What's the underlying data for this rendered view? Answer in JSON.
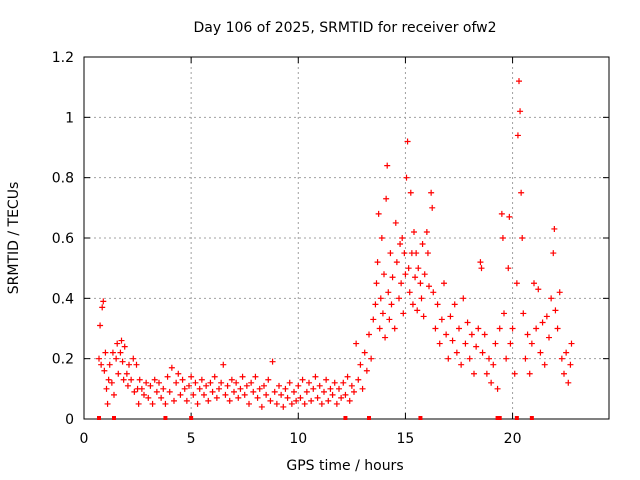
{
  "chart_data": {
    "type": "scatter",
    "title": "Day 106 of 2025, SRMTID for receiver ofw2",
    "xlabel": "GPS time / hours",
    "ylabel": "SRMTID / TECUs",
    "xlim": [
      0,
      24.5
    ],
    "ylim": [
      0,
      1.2
    ],
    "xticks": [
      0,
      5,
      10,
      15,
      20
    ],
    "xtick_labels": [
      "0",
      "5",
      "10",
      "15",
      "20"
    ],
    "yticks": [
      0,
      0.2,
      0.4,
      0.6,
      0.8,
      1.0,
      1.2
    ],
    "ytick_labels": [
      "0",
      "0.2",
      "0.4",
      "0.6",
      "0.8",
      "1",
      "1.2"
    ],
    "grid": true,
    "marker": "plus",
    "color": "#ff0000",
    "series": [
      {
        "name": "SRMTID",
        "points": [
          [
            0.7,
            0.2
          ],
          [
            0.75,
            0.31
          ],
          [
            0.8,
            0.18
          ],
          [
            0.85,
            0.37
          ],
          [
            0.9,
            0.39
          ],
          [
            0.95,
            0.16
          ],
          [
            1.0,
            0.22
          ],
          [
            1.05,
            0.1
          ],
          [
            1.1,
            0.05
          ],
          [
            1.15,
            0.13
          ],
          [
            1.2,
            0.18
          ],
          [
            1.3,
            0.12
          ],
          [
            1.35,
            0.22
          ],
          [
            1.4,
            0.08
          ],
          [
            1.5,
            0.2
          ],
          [
            1.55,
            0.25
          ],
          [
            1.6,
            0.15
          ],
          [
            1.7,
            0.22
          ],
          [
            1.75,
            0.26
          ],
          [
            1.8,
            0.19
          ],
          [
            1.85,
            0.13
          ],
          [
            1.9,
            0.24
          ],
          [
            2.0,
            0.15
          ],
          [
            2.05,
            0.11
          ],
          [
            2.1,
            0.18
          ],
          [
            2.2,
            0.13
          ],
          [
            2.3,
            0.2
          ],
          [
            2.35,
            0.09
          ],
          [
            2.45,
            0.18
          ],
          [
            2.5,
            0.1
          ],
          [
            2.55,
            0.05
          ],
          [
            2.6,
            0.13
          ],
          [
            2.7,
            0.1
          ],
          [
            2.8,
            0.08
          ],
          [
            2.9,
            0.12
          ],
          [
            3.0,
            0.07
          ],
          [
            3.1,
            0.11
          ],
          [
            3.2,
            0.05
          ],
          [
            3.3,
            0.13
          ],
          [
            3.4,
            0.09
          ],
          [
            3.5,
            0.12
          ],
          [
            3.6,
            0.07
          ],
          [
            3.7,
            0.1
          ],
          [
            3.8,
            0.05
          ],
          [
            3.9,
            0.14
          ],
          [
            4.0,
            0.09
          ],
          [
            4.1,
            0.17
          ],
          [
            4.2,
            0.06
          ],
          [
            4.3,
            0.12
          ],
          [
            4.4,
            0.15
          ],
          [
            4.5,
            0.08
          ],
          [
            4.6,
            0.13
          ],
          [
            4.7,
            0.1
          ],
          [
            4.8,
            0.06
          ],
          [
            4.9,
            0.11
          ],
          [
            5.0,
            0.14
          ],
          [
            5.1,
            0.08
          ],
          [
            5.2,
            0.12
          ],
          [
            5.3,
            0.05
          ],
          [
            5.4,
            0.1
          ],
          [
            5.5,
            0.13
          ],
          [
            5.6,
            0.08
          ],
          [
            5.7,
            0.11
          ],
          [
            5.8,
            0.06
          ],
          [
            5.9,
            0.12
          ],
          [
            6.0,
            0.09
          ],
          [
            6.1,
            0.14
          ],
          [
            6.2,
            0.07
          ],
          [
            6.3,
            0.1
          ],
          [
            6.4,
            0.12
          ],
          [
            6.5,
            0.18
          ],
          [
            6.6,
            0.08
          ],
          [
            6.7,
            0.11
          ],
          [
            6.8,
            0.06
          ],
          [
            6.9,
            0.13
          ],
          [
            7.0,
            0.09
          ],
          [
            7.1,
            0.12
          ],
          [
            7.2,
            0.07
          ],
          [
            7.3,
            0.1
          ],
          [
            7.4,
            0.14
          ],
          [
            7.5,
            0.08
          ],
          [
            7.6,
            0.11
          ],
          [
            7.7,
            0.05
          ],
          [
            7.8,
            0.12
          ],
          [
            7.9,
            0.09
          ],
          [
            8.0,
            0.14
          ],
          [
            8.1,
            0.07
          ],
          [
            8.2,
            0.1
          ],
          [
            8.3,
            0.04
          ],
          [
            8.4,
            0.11
          ],
          [
            8.5,
            0.08
          ],
          [
            8.6,
            0.13
          ],
          [
            8.7,
            0.06
          ],
          [
            8.8,
            0.19
          ],
          [
            8.9,
            0.09
          ],
          [
            9.0,
            0.05
          ],
          [
            9.1,
            0.11
          ],
          [
            9.2,
            0.08
          ],
          [
            9.3,
            0.04
          ],
          [
            9.4,
            0.1
          ],
          [
            9.5,
            0.07
          ],
          [
            9.6,
            0.12
          ],
          [
            9.7,
            0.05
          ],
          [
            9.8,
            0.09
          ],
          [
            9.9,
            0.06
          ],
          [
            10.0,
            0.11
          ],
          [
            10.1,
            0.07
          ],
          [
            10.2,
            0.13
          ],
          [
            10.3,
            0.05
          ],
          [
            10.4,
            0.09
          ],
          [
            10.5,
            0.12
          ],
          [
            10.6,
            0.06
          ],
          [
            10.7,
            0.1
          ],
          [
            10.8,
            0.14
          ],
          [
            10.9,
            0.07
          ],
          [
            11.0,
            0.11
          ],
          [
            11.1,
            0.05
          ],
          [
            11.2,
            0.09
          ],
          [
            11.3,
            0.13
          ],
          [
            11.4,
            0.06
          ],
          [
            11.5,
            0.1
          ],
          [
            11.6,
            0.08
          ],
          [
            11.7,
            0.12
          ],
          [
            11.8,
            0.05
          ],
          [
            11.9,
            0.1
          ],
          [
            12.0,
            0.07
          ],
          [
            12.1,
            0.12
          ],
          [
            12.2,
            0.08
          ],
          [
            12.3,
            0.14
          ],
          [
            12.4,
            0.06
          ],
          [
            12.5,
            0.11
          ],
          [
            12.6,
            0.09
          ],
          [
            12.7,
            0.25
          ],
          [
            12.8,
            0.13
          ],
          [
            12.9,
            0.18
          ],
          [
            13.0,
            0.1
          ],
          [
            13.1,
            0.22
          ],
          [
            13.2,
            0.16
          ],
          [
            13.3,
            0.28
          ],
          [
            13.4,
            0.2
          ],
          [
            13.5,
            0.33
          ],
          [
            13.6,
            0.38
          ],
          [
            13.65,
            0.45
          ],
          [
            13.7,
            0.52
          ],
          [
            13.75,
            0.68
          ],
          [
            13.8,
            0.3
          ],
          [
            13.85,
            0.4
          ],
          [
            13.9,
            0.6
          ],
          [
            13.95,
            0.35
          ],
          [
            14.0,
            0.48
          ],
          [
            14.05,
            0.27
          ],
          [
            14.1,
            0.73
          ],
          [
            14.15,
            0.84
          ],
          [
            14.2,
            0.42
          ],
          [
            14.25,
            0.33
          ],
          [
            14.3,
            0.55
          ],
          [
            14.35,
            0.38
          ],
          [
            14.4,
            0.47
          ],
          [
            14.5,
            0.3
          ],
          [
            14.55,
            0.65
          ],
          [
            14.6,
            0.52
          ],
          [
            14.7,
            0.4
          ],
          [
            14.75,
            0.58
          ],
          [
            14.8,
            0.45
          ],
          [
            14.85,
            0.6
          ],
          [
            14.9,
            0.35
          ],
          [
            14.95,
            0.55
          ],
          [
            15.0,
            0.48
          ],
          [
            15.05,
            0.8
          ],
          [
            15.1,
            0.92
          ],
          [
            15.15,
            0.5
          ],
          [
            15.2,
            0.42
          ],
          [
            15.25,
            0.75
          ],
          [
            15.3,
            0.55
          ],
          [
            15.35,
            0.38
          ],
          [
            15.4,
            0.62
          ],
          [
            15.45,
            0.47
          ],
          [
            15.5,
            0.55
          ],
          [
            15.55,
            0.36
          ],
          [
            15.6,
            0.5
          ],
          [
            15.7,
            0.45
          ],
          [
            15.75,
            0.4
          ],
          [
            15.8,
            0.58
          ],
          [
            15.85,
            0.34
          ],
          [
            15.9,
            0.48
          ],
          [
            16.0,
            0.62
          ],
          [
            16.05,
            0.55
          ],
          [
            16.1,
            0.44
          ],
          [
            16.2,
            0.75
          ],
          [
            16.25,
            0.7
          ],
          [
            16.3,
            0.42
          ],
          [
            16.4,
            0.3
          ],
          [
            16.5,
            0.38
          ],
          [
            16.6,
            0.25
          ],
          [
            16.7,
            0.33
          ],
          [
            16.8,
            0.45
          ],
          [
            16.9,
            0.28
          ],
          [
            17.0,
            0.2
          ],
          [
            17.1,
            0.34
          ],
          [
            17.2,
            0.26
          ],
          [
            17.3,
            0.38
          ],
          [
            17.4,
            0.22
          ],
          [
            17.5,
            0.3
          ],
          [
            17.6,
            0.18
          ],
          [
            17.7,
            0.4
          ],
          [
            17.8,
            0.25
          ],
          [
            17.9,
            0.32
          ],
          [
            18.0,
            0.2
          ],
          [
            18.1,
            0.28
          ],
          [
            18.2,
            0.15
          ],
          [
            18.3,
            0.24
          ],
          [
            18.4,
            0.3
          ],
          [
            18.5,
            0.52
          ],
          [
            18.55,
            0.5
          ],
          [
            18.6,
            0.22
          ],
          [
            18.7,
            0.28
          ],
          [
            18.8,
            0.15
          ],
          [
            18.9,
            0.2
          ],
          [
            19.0,
            0.12
          ],
          [
            19.1,
            0.18
          ],
          [
            19.2,
            0.25
          ],
          [
            19.3,
            0.1
          ],
          [
            19.4,
            0.3
          ],
          [
            19.5,
            0.68
          ],
          [
            19.55,
            0.6
          ],
          [
            19.6,
            0.35
          ],
          [
            19.7,
            0.2
          ],
          [
            19.8,
            0.5
          ],
          [
            19.85,
            0.67
          ],
          [
            19.9,
            0.25
          ],
          [
            20.0,
            0.3
          ],
          [
            20.1,
            0.15
          ],
          [
            20.2,
            0.45
          ],
          [
            20.25,
            0.94
          ],
          [
            20.3,
            1.12
          ],
          [
            20.35,
            1.02
          ],
          [
            20.4,
            0.75
          ],
          [
            20.45,
            0.6
          ],
          [
            20.5,
            0.35
          ],
          [
            20.6,
            0.2
          ],
          [
            20.7,
            0.28
          ],
          [
            20.8,
            0.15
          ],
          [
            20.9,
            0.25
          ],
          [
            21.0,
            0.45
          ],
          [
            21.1,
            0.3
          ],
          [
            21.2,
            0.43
          ],
          [
            21.3,
            0.22
          ],
          [
            21.4,
            0.32
          ],
          [
            21.5,
            0.18
          ],
          [
            21.6,
            0.34
          ],
          [
            21.7,
            0.27
          ],
          [
            21.8,
            0.4
          ],
          [
            21.9,
            0.55
          ],
          [
            21.95,
            0.63
          ],
          [
            22.0,
            0.36
          ],
          [
            22.1,
            0.3
          ],
          [
            22.2,
            0.42
          ],
          [
            22.3,
            0.2
          ],
          [
            22.4,
            0.15
          ],
          [
            22.5,
            0.22
          ],
          [
            22.6,
            0.12
          ],
          [
            22.7,
            0.18
          ],
          [
            22.75,
            0.25
          ]
        ]
      }
    ],
    "bottom_markers_x": [
      0.7,
      1.4,
      3.8,
      5.0,
      12.2,
      13.3,
      15.7,
      19.3,
      19.4,
      20.2,
      20.9
    ]
  }
}
